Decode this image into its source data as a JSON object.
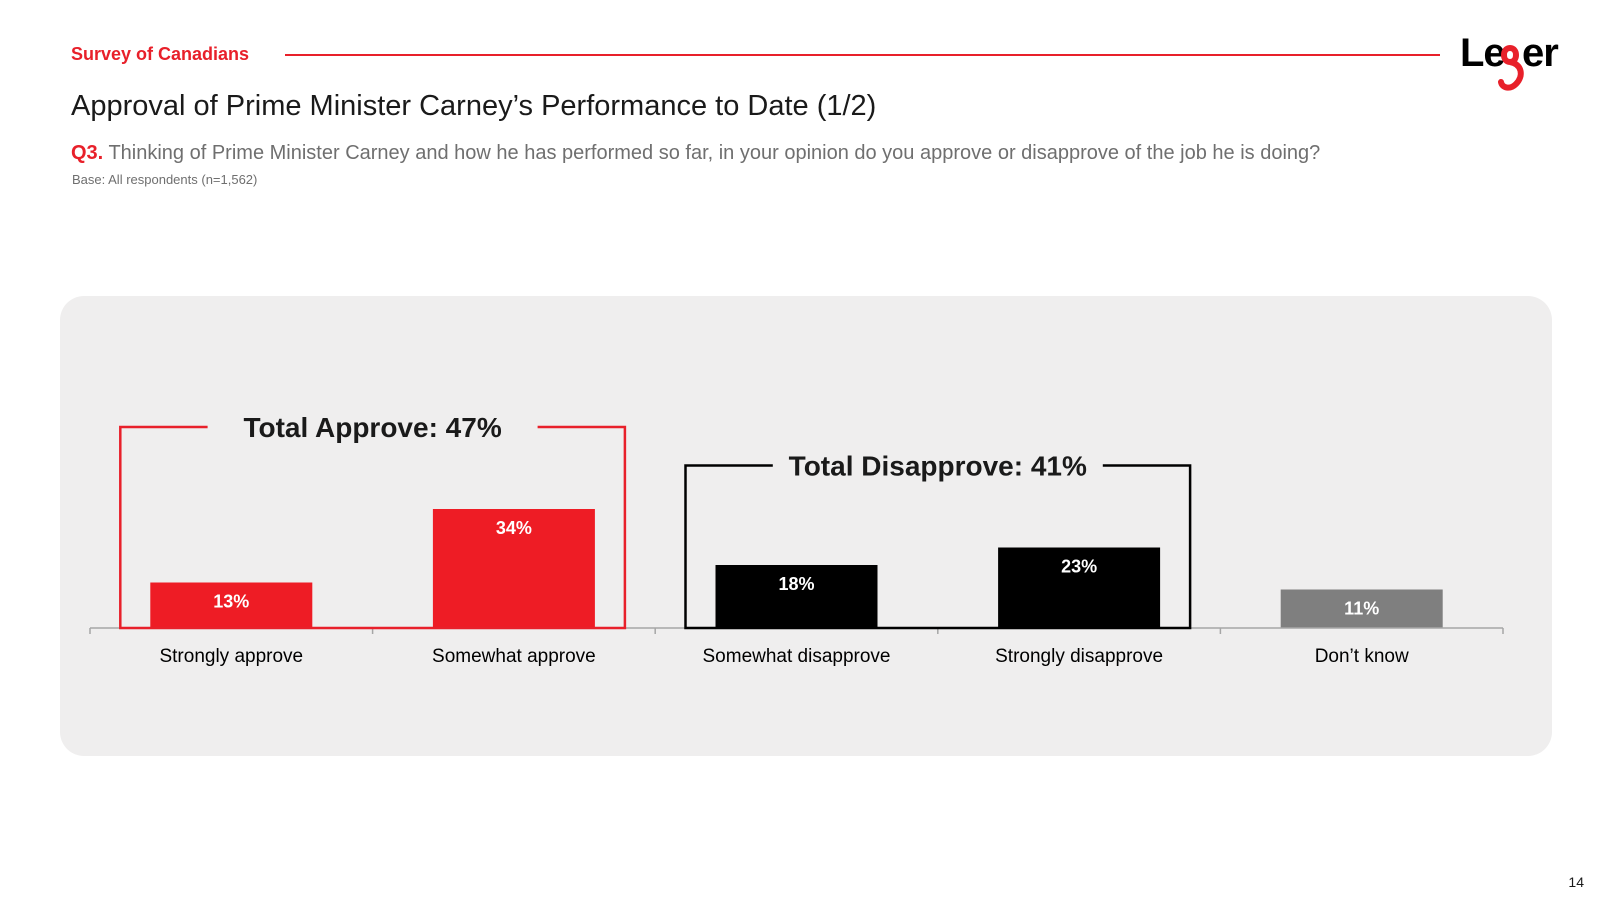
{
  "header": {
    "section_label": "Survey of Canadians",
    "title": "Approval of Prime Minister Carney’s Performance to Date (1/2)",
    "question_number": "Q3.",
    "question_text": "Thinking of Prime Minister Carney and how he has performed so far, in your opinion do you approve or disapprove of the job he is doing?",
    "base": "Base: All respondents (n=1,562)"
  },
  "logo": {
    "text": "Leger"
  },
  "page_number": "14",
  "colors": {
    "accent": "#e8202a",
    "approve": "#ee1c25",
    "disapprove": "#000000",
    "dont_know": "#7f7f7f",
    "panel": "#efeeee"
  },
  "chart_data": {
    "type": "bar",
    "categories": [
      "Strongly approve",
      "Somewhat approve",
      "Somewhat disapprove",
      "Strongly disapprove",
      "Don’t know"
    ],
    "values": [
      13,
      34,
      18,
      23,
      11
    ],
    "value_labels": [
      "13%",
      "34%",
      "18%",
      "23%",
      "11%"
    ],
    "bar_colors": [
      "#ee1c25",
      "#ee1c25",
      "#000000",
      "#000000",
      "#7f7f7f"
    ],
    "ylim": [
      0,
      40
    ],
    "title": "",
    "xlabel": "",
    "ylabel": "",
    "grid": false,
    "legend": "none",
    "groups": [
      {
        "label": "Total Approve: 47%",
        "categories": [
          0,
          1
        ],
        "color": "#e8202a"
      },
      {
        "label": "Total Disapprove: 41%",
        "categories": [
          2,
          3
        ],
        "color": "#000000"
      }
    ]
  }
}
